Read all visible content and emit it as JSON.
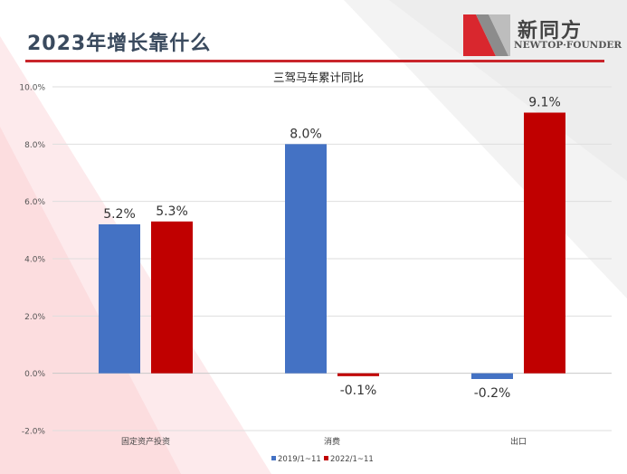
{
  "slide": {
    "title": "2023年增长靠什么",
    "logo_cn": "新同方",
    "logo_en": "NEWTOP·FOUNDER"
  },
  "colors": {
    "series_2019": "#4472c4",
    "series_2022": "#c00000",
    "accent": "#c9252b"
  },
  "chart_data": {
    "type": "bar",
    "title": "三驾马车累计同比",
    "categories": [
      "固定资产投资",
      "消费",
      "出口"
    ],
    "series": [
      {
        "name": "2019/1~11",
        "values": [
          5.2,
          8.0,
          -0.2
        ]
      },
      {
        "name": "2022/1~11",
        "values": [
          5.3,
          -0.1,
          9.1
        ]
      }
    ],
    "data_labels": [
      [
        "5.2%",
        "8.0%",
        "-0.2%"
      ],
      [
        "5.3%",
        "-0.1%",
        "9.1%"
      ]
    ],
    "ylim": [
      -2.0,
      10.0
    ],
    "yticks": [
      -2.0,
      0.0,
      2.0,
      4.0,
      6.0,
      8.0,
      10.0
    ],
    "ytick_labels": [
      "-2.0%",
      "0.0%",
      "2.0%",
      "4.0%",
      "6.0%",
      "8.0%",
      "10.0%"
    ],
    "xlabel": "",
    "ylabel": "",
    "grid": true,
    "legend_position": "bottom"
  }
}
